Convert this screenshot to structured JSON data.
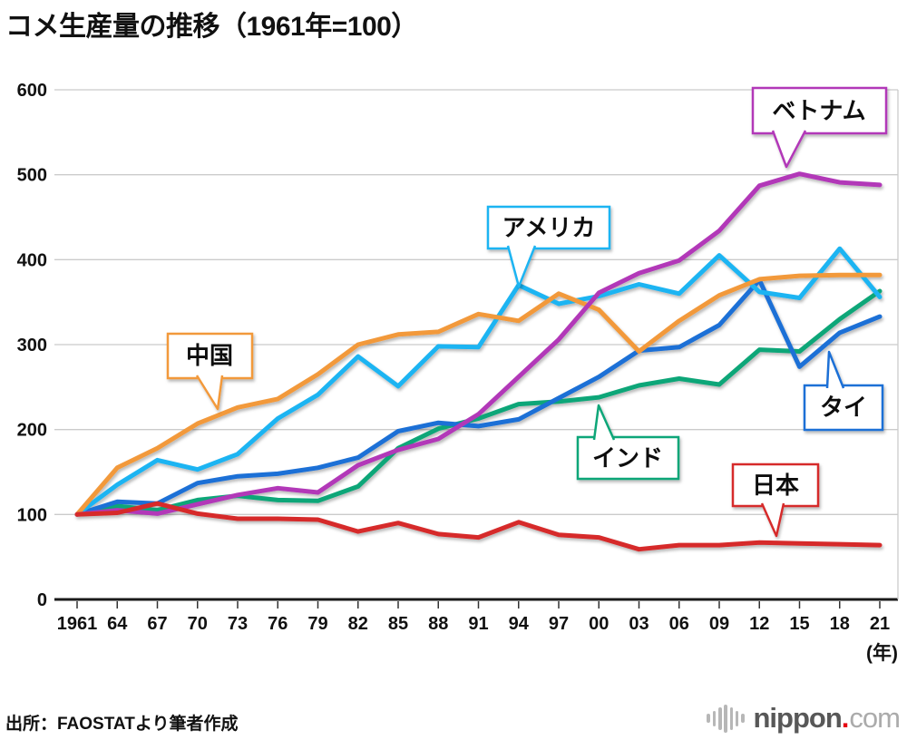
{
  "title": "コメ生産量の推移（1961年=100）",
  "source_note": "出所：FAOSTATより筆者作成",
  "x_axis_unit": "(年)",
  "logo": {
    "icon": "soundwave-icon",
    "text_main": "nippon",
    "text_dot": ".",
    "text_tld": "com"
  },
  "chart_data": {
    "type": "line",
    "title": "コメ生産量の推移（1961年=100）",
    "x": [
      1961,
      1964,
      1967,
      1970,
      1973,
      1976,
      1979,
      1982,
      1985,
      1988,
      1991,
      1994,
      1997,
      2000,
      2003,
      2006,
      2009,
      2012,
      2015,
      2018,
      2021
    ],
    "x_tick_labels": [
      "1961",
      "64",
      "67",
      "70",
      "73",
      "76",
      "79",
      "82",
      "85",
      "88",
      "91",
      "94",
      "97",
      "00",
      "03",
      "06",
      "09",
      "12",
      "15",
      "18",
      "21"
    ],
    "y_ticks": [
      0,
      100,
      200,
      300,
      400,
      500,
      600
    ],
    "ylim": [
      0,
      600
    ],
    "grid": "horizontal",
    "legend": "callout-labels",
    "series": [
      {
        "key": "china",
        "name": "中国",
        "color": "#F2993B",
        "values": [
          100,
          155,
          178,
          207,
          226,
          236,
          265,
          300,
          312,
          315,
          336,
          328,
          360,
          341,
          292,
          328,
          358,
          377,
          381,
          382,
          382
        ]
      },
      {
        "key": "america",
        "name": "アメリカ",
        "color": "#1CB4F2",
        "values": [
          100,
          135,
          164,
          153,
          171,
          213,
          241,
          286,
          251,
          298,
          297,
          370,
          348,
          357,
          371,
          360,
          405,
          362,
          355,
          413,
          356
        ]
      },
      {
        "key": "vietnam",
        "name": "ベトナム",
        "color": "#B239B8",
        "values": [
          100,
          105,
          101,
          112,
          123,
          131,
          126,
          158,
          176,
          189,
          218,
          262,
          306,
          361,
          384,
          399,
          434,
          487,
          501,
          491,
          488
        ]
      },
      {
        "key": "thailand",
        "name": "タイ",
        "color": "#1C6FD6",
        "values": [
          100,
          115,
          113,
          137,
          145,
          148,
          155,
          167,
          198,
          208,
          204,
          212,
          237,
          262,
          293,
          297,
          323,
          376,
          274,
          314,
          333
        ]
      },
      {
        "key": "india",
        "name": "インド",
        "color": "#0CA678",
        "values": [
          100,
          110,
          105,
          117,
          122,
          117,
          116,
          133,
          178,
          201,
          213,
          230,
          233,
          238,
          252,
          260,
          253,
          294,
          292,
          330,
          363
        ]
      },
      {
        "key": "japan",
        "name": "日本",
        "color": "#D62C2C",
        "values": [
          100,
          102,
          113,
          101,
          95,
          95,
          94,
          80,
          90,
          77,
          73,
          91,
          76,
          73,
          59,
          64,
          64,
          67,
          66,
          65,
          64
        ]
      }
    ]
  }
}
